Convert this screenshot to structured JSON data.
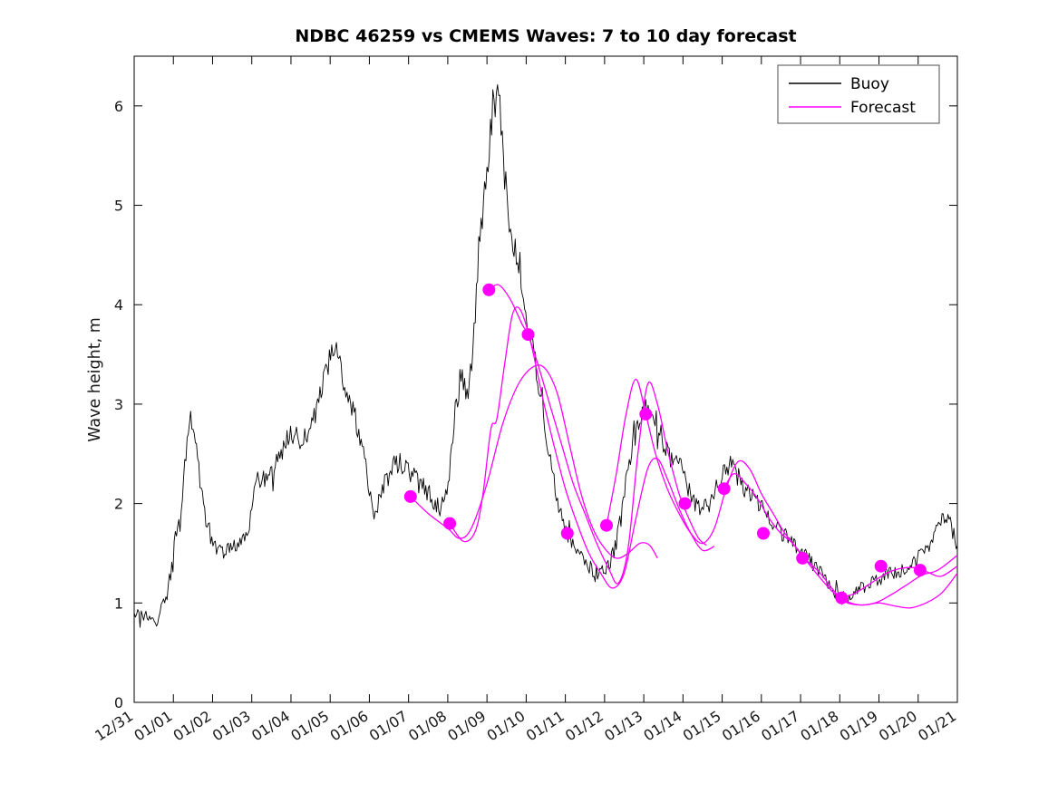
{
  "chart_data": {
    "type": "line",
    "title": "NDBC 46259 vs CMEMS Waves: 7 to 10 day forecast",
    "xlabel": "",
    "ylabel": "Wave height, m",
    "xlim": [
      0,
      21
    ],
    "ylim": [
      0,
      6.5
    ],
    "grid": false,
    "x_ticks": [
      0,
      1,
      2,
      3,
      4,
      5,
      6,
      7,
      8,
      9,
      10,
      11,
      12,
      13,
      14,
      15,
      16,
      17,
      18,
      19,
      20,
      21
    ],
    "x_tick_labels": [
      "12/31",
      "01/01",
      "01/02",
      "01/03",
      "01/04",
      "01/05",
      "01/06",
      "01/07",
      "01/08",
      "01/09",
      "01/10",
      "01/11",
      "01/12",
      "01/13",
      "01/14",
      "01/15",
      "01/16",
      "01/17",
      "01/18",
      "01/19",
      "01/20",
      "01/21"
    ],
    "y_ticks": [
      0,
      1,
      2,
      3,
      4,
      5,
      6
    ],
    "legend": [
      {
        "label": "Buoy",
        "color": "#000000"
      },
      {
        "label": "Forecast",
        "color": "#ff00ff"
      }
    ],
    "legend_position": "top-right",
    "series": [
      {
        "name": "Buoy",
        "color": "#000000",
        "width": 0.9,
        "noise": {
          "seed": 46259,
          "amplitude": 0.09,
          "step": 0.03
        },
        "x": [
          0,
          0.3,
          0.6,
          0.75,
          1.0,
          1.2,
          1.4,
          1.6,
          1.8,
          2.0,
          2.3,
          2.6,
          2.9,
          3.1,
          3.4,
          3.7,
          4.0,
          4.3,
          4.6,
          4.9,
          5.1,
          5.3,
          5.6,
          5.9,
          6.1,
          6.3,
          6.6,
          6.9,
          7.1,
          7.3,
          7.5,
          7.8,
          8.0,
          8.2,
          8.35,
          8.5,
          8.65,
          8.8,
          9.0,
          9.15,
          9.3,
          9.45,
          9.6,
          9.8,
          10.0,
          10.2,
          10.4,
          10.6,
          10.8,
          11.0,
          11.3,
          11.6,
          11.9,
          12.1,
          12.3,
          12.5,
          12.7,
          12.9,
          13.1,
          13.3,
          13.5,
          13.7,
          13.9,
          14.1,
          14.3,
          14.5,
          14.7,
          14.9,
          15.1,
          15.3,
          15.5,
          15.7,
          15.9,
          16.1,
          16.4,
          16.7,
          17.0,
          17.3,
          17.6,
          17.9,
          18.1,
          18.4,
          18.7,
          19.0,
          19.3,
          19.6,
          19.9,
          20.1,
          20.4,
          20.7,
          20.9,
          21.0
        ],
        "y": [
          0.9,
          0.85,
          0.8,
          1.0,
          1.4,
          2.0,
          2.9,
          2.5,
          1.9,
          1.6,
          1.5,
          1.6,
          1.7,
          2.3,
          2.2,
          2.5,
          2.7,
          2.6,
          2.9,
          3.3,
          3.6,
          3.3,
          2.9,
          2.4,
          1.9,
          2.1,
          2.4,
          2.4,
          2.3,
          2.2,
          2.1,
          1.95,
          2.1,
          3.0,
          3.3,
          3.1,
          3.6,
          4.6,
          5.4,
          6.0,
          6.2,
          5.3,
          4.8,
          4.4,
          3.9,
          3.5,
          3.0,
          2.5,
          2.0,
          1.75,
          1.5,
          1.35,
          1.3,
          1.35,
          1.6,
          2.1,
          2.6,
          2.8,
          3.0,
          2.85,
          2.6,
          2.5,
          2.4,
          2.2,
          2.0,
          1.95,
          2.0,
          2.2,
          2.4,
          2.35,
          2.2,
          2.1,
          2.0,
          1.9,
          1.75,
          1.65,
          1.5,
          1.4,
          1.25,
          1.1,
          1.05,
          1.1,
          1.2,
          1.25,
          1.3,
          1.35,
          1.4,
          1.5,
          1.65,
          1.9,
          1.7,
          1.6
        ]
      },
      {
        "name": "Forecast 01/07",
        "color": "#ff00ff",
        "width": 1.3,
        "x": [
          7.05,
          7.5,
          8.0,
          8.3,
          8.6,
          9.0,
          9.4,
          9.8,
          10.2,
          10.5,
          10.8,
          11.1,
          11.4,
          11.7,
          12.0,
          12.3,
          12.6,
          12.9,
          13.15,
          13.35
        ],
        "y": [
          2.07,
          1.9,
          1.75,
          1.65,
          1.75,
          2.2,
          2.8,
          3.2,
          3.38,
          3.35,
          3.1,
          2.6,
          2.1,
          1.75,
          1.55,
          1.45,
          1.5,
          1.6,
          1.58,
          1.45
        ]
      },
      {
        "name": "Forecast 01/08",
        "color": "#ff00ff",
        "width": 1.3,
        "x": [
          8.05,
          8.4,
          8.7,
          8.9,
          9.1,
          9.25,
          9.45,
          9.65,
          9.85,
          10.1,
          10.4,
          10.7,
          11.0,
          11.3,
          11.6,
          11.9,
          12.2,
          12.5,
          12.8,
          13.1,
          13.35,
          13.6,
          13.9,
          14.2,
          14.5,
          14.8
        ],
        "y": [
          1.8,
          1.62,
          1.72,
          2.1,
          2.75,
          2.85,
          3.4,
          3.9,
          3.95,
          3.65,
          3.1,
          2.6,
          2.15,
          1.8,
          1.5,
          1.3,
          1.15,
          1.3,
          1.85,
          2.35,
          2.45,
          2.25,
          1.95,
          1.7,
          1.53,
          1.57
        ]
      },
      {
        "name": "Forecast 01/09",
        "color": "#ff00ff",
        "width": 1.3,
        "x": [
          9.05,
          9.3,
          9.6,
          9.9,
          10.05,
          10.3,
          10.6,
          10.9,
          11.2,
          11.5,
          11.8,
          12.1,
          12.35,
          12.6,
          12.85,
          13.1,
          13.35,
          13.6,
          13.9,
          14.15,
          14.4,
          14.6
        ],
        "y": [
          4.15,
          4.2,
          4.05,
          3.8,
          3.7,
          3.4,
          3.0,
          2.6,
          2.2,
          1.9,
          1.6,
          1.35,
          1.2,
          1.55,
          2.5,
          3.2,
          3.0,
          2.55,
          2.1,
          1.85,
          1.65,
          1.58
        ]
      },
      {
        "name": "Forecast 01/12",
        "color": "#ff00ff",
        "width": 1.3,
        "x": [
          12.05,
          12.3,
          12.55,
          12.8,
          13.05,
          13.3,
          13.6,
          13.9,
          14.2,
          14.5,
          14.8,
          15.1,
          15.4,
          15.7,
          16.0,
          16.3,
          16.6,
          17.0,
          17.4,
          17.8,
          18.1,
          18.5,
          18.9,
          19.3,
          19.7,
          20.1,
          20.5,
          21.0
        ],
        "y": [
          1.78,
          2.3,
          2.9,
          3.25,
          2.9,
          2.5,
          2.15,
          1.9,
          1.7,
          1.6,
          1.75,
          2.15,
          2.42,
          2.35,
          2.1,
          1.9,
          1.7,
          1.5,
          1.3,
          1.12,
          1.03,
          0.98,
          1.0,
          1.08,
          1.18,
          1.28,
          1.33,
          1.48
        ]
      },
      {
        "name": "Forecast 01/15",
        "color": "#ff00ff",
        "width": 1.3,
        "x": [
          15.05,
          15.3,
          15.6,
          15.9,
          16.2,
          16.5,
          16.8,
          17.1,
          17.5,
          17.9,
          18.2,
          18.6,
          19.0,
          19.4,
          19.8,
          20.2,
          20.6,
          21.0
        ],
        "y": [
          2.15,
          2.3,
          2.2,
          2.05,
          1.85,
          1.7,
          1.6,
          1.45,
          1.3,
          1.1,
          1.0,
          0.98,
          1.0,
          0.97,
          0.95,
          1.0,
          1.1,
          1.3
        ]
      },
      {
        "name": "Forecast 01/18",
        "color": "#ff00ff",
        "width": 1.3,
        "x": [
          18.05,
          18.4,
          18.8,
          19.2,
          19.6,
          20.0,
          20.3,
          20.6,
          21.0
        ],
        "y": [
          1.05,
          1.1,
          1.2,
          1.3,
          1.35,
          1.35,
          1.3,
          1.27,
          1.37
        ]
      }
    ],
    "markers": {
      "name": "forecast-start-points",
      "color": "#ff00ff",
      "radius": 7,
      "x": [
        7.05,
        8.05,
        9.05,
        10.05,
        11.05,
        12.05,
        13.05,
        14.05,
        15.05,
        16.05,
        17.05,
        18.05,
        19.05,
        20.05
      ],
      "y": [
        2.07,
        1.8,
        4.15,
        3.7,
        1.7,
        1.78,
        2.9,
        2.0,
        2.15,
        1.7,
        1.45,
        1.05,
        1.37,
        1.33
      ]
    }
  }
}
